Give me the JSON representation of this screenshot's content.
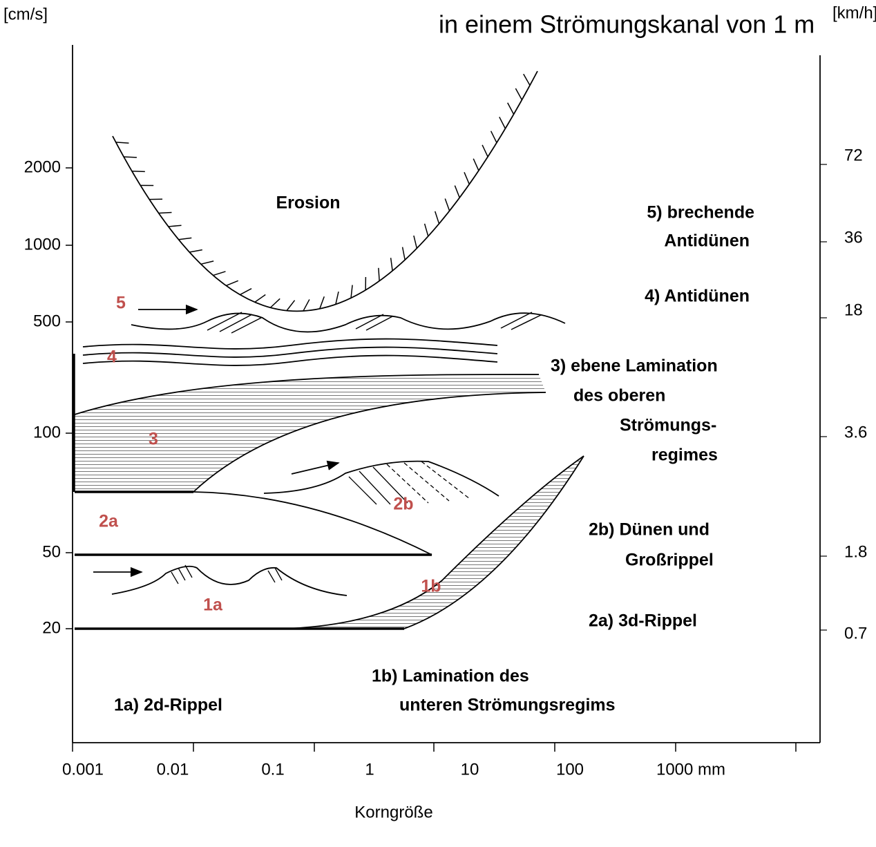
{
  "title": "in einem Strömungskanal von 1 m",
  "axes": {
    "left_unit": "[cm/s]",
    "right_unit": "[km/h]",
    "left_ticks": [
      "2000",
      "1000",
      "500",
      "100",
      "50",
      "20"
    ],
    "right_ticks": [
      "72",
      "36",
      "18",
      "3.6",
      "1.8",
      "0.7"
    ],
    "bottom_ticks": [
      "0.001",
      "0.01",
      "0.1",
      "1",
      "10",
      "100",
      "1000 mm"
    ],
    "bottom_label": "Korngröße"
  },
  "regions": [
    {
      "label": [
        "Erosion"
      ]
    },
    {
      "label": [
        "5) brechende",
        "Antidünen"
      ]
    },
    {
      "label": [
        "4) Antidünen"
      ]
    },
    {
      "label": [
        "3) ebene Lamination",
        "des  oberen",
        "Strömungs-",
        "regimes"
      ]
    },
    {
      "label": [
        "2b) Dünen und",
        "Großrippel"
      ]
    },
    {
      "label": [
        "2a) 3d-Rippel"
      ]
    },
    {
      "label": [
        "1a) 2d-Rippel"
      ]
    },
    {
      "label": [
        "1b) Lamination des",
        "unteren Strömungsregims"
      ]
    }
  ],
  "markers": [
    "5",
    "4",
    "3",
    "2a",
    "2b",
    "1b",
    "1a"
  ]
}
